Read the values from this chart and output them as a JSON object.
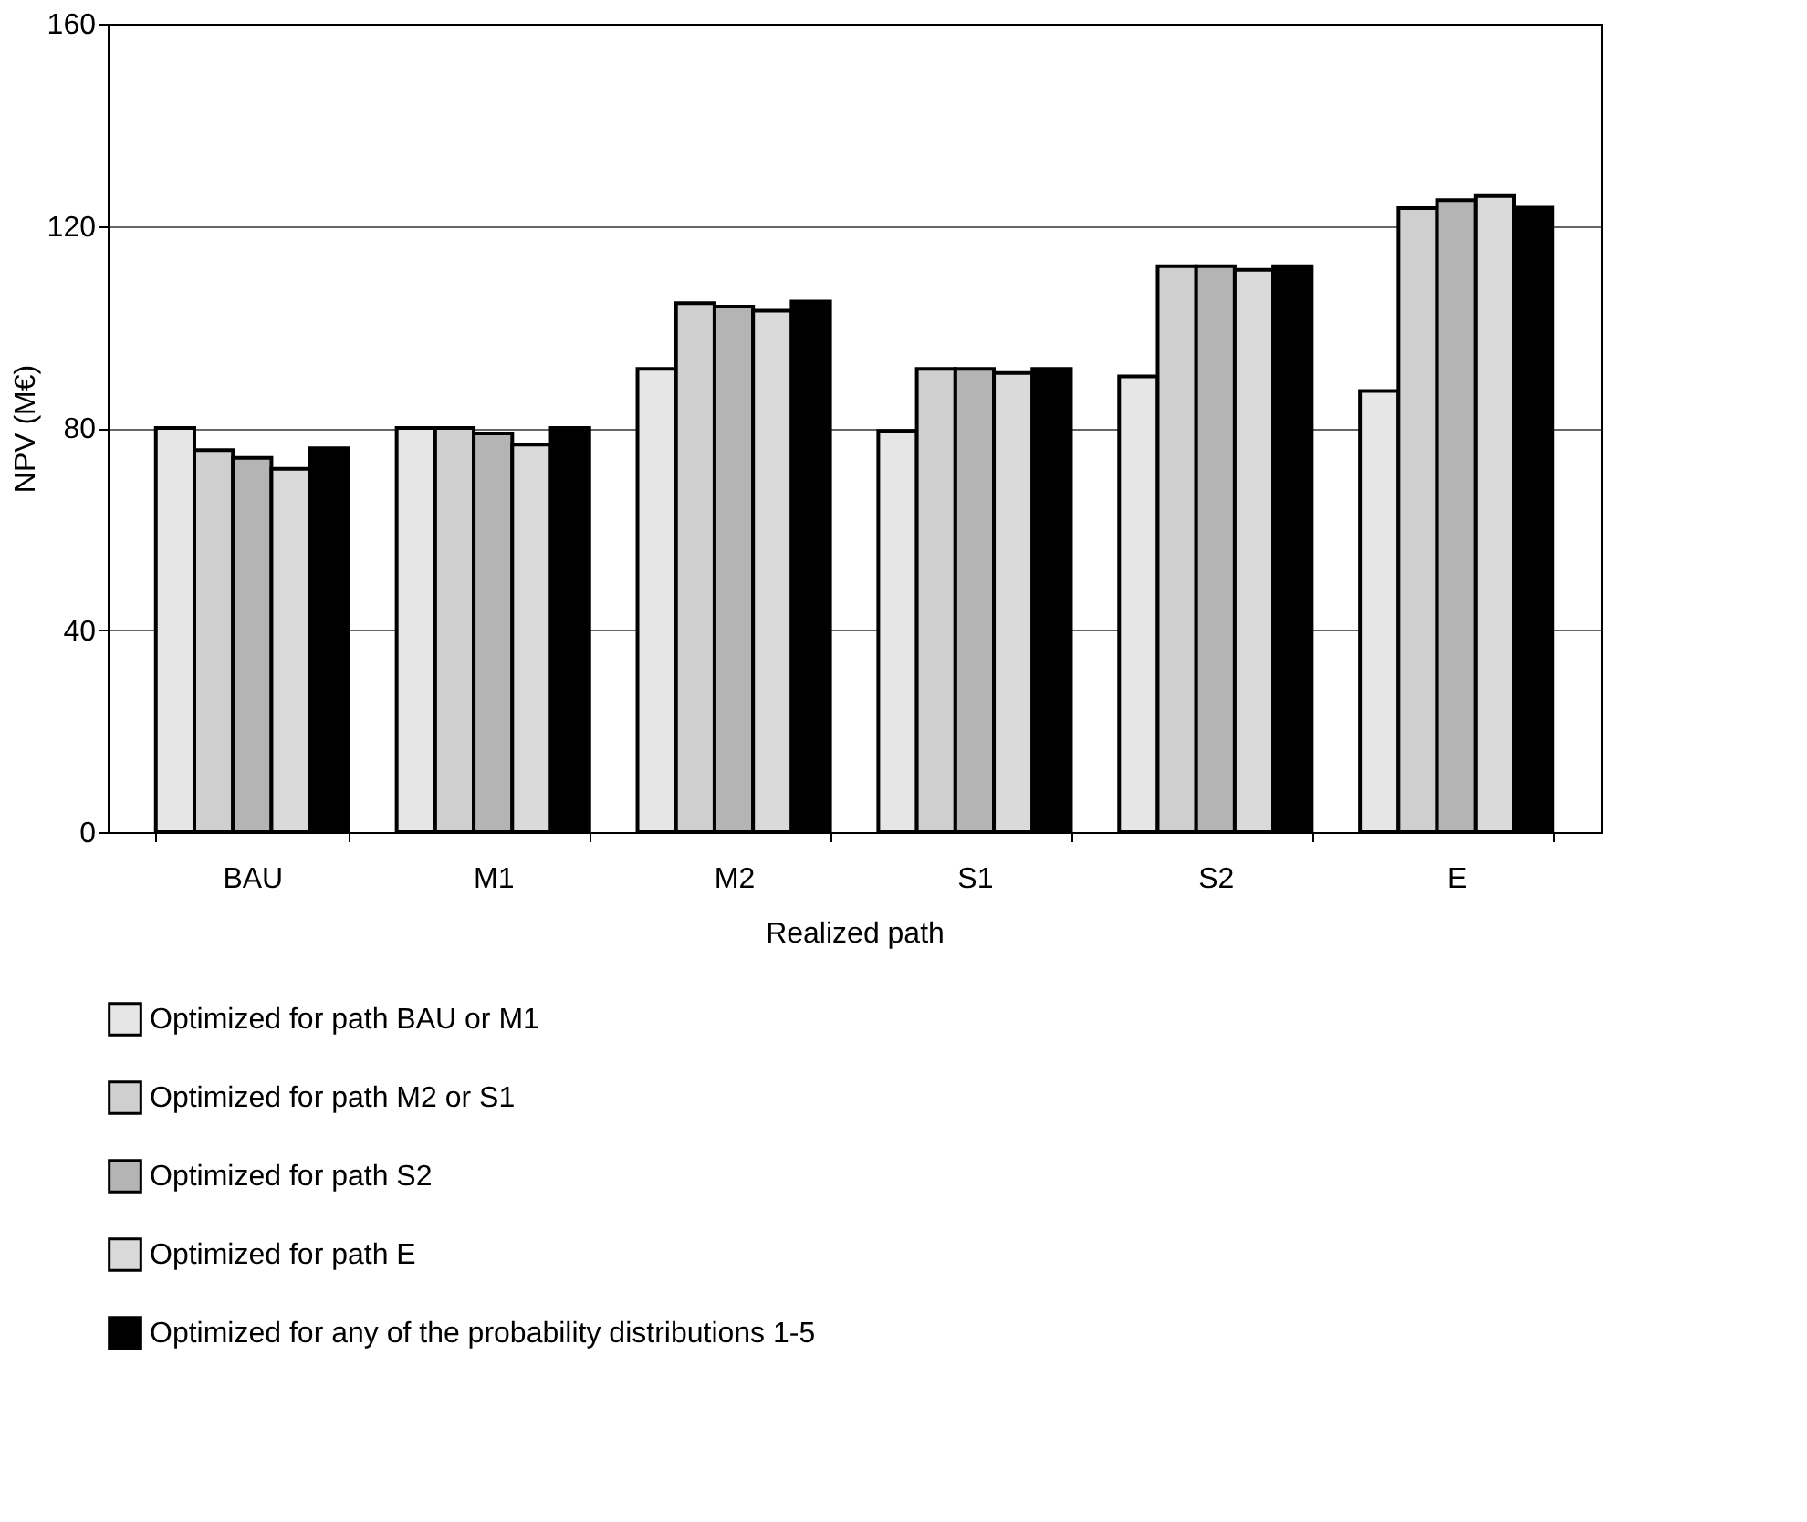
{
  "chart_data": {
    "type": "bar",
    "xlabel": "Realized path",
    "ylabel": "NPV (M€)",
    "categories": [
      "BAU",
      "M1",
      "M2",
      "S1",
      "S2",
      "E"
    ],
    "series": [
      {
        "name": "Optimized for path BAU or M1",
        "color": "#e6e6e6",
        "values": [
          80,
          80,
          91.7,
          79.4,
          90.2,
          87.3
        ]
      },
      {
        "name": "Optimized for path M2 or S1",
        "color": "#cfcfcf",
        "values": [
          75.6,
          80,
          104.7,
          91.7,
          112,
          123.5
        ]
      },
      {
        "name": "Optimized for path S2",
        "color": "#b4b4b4",
        "values": [
          74.1,
          78.9,
          104,
          91.7,
          112,
          125.1
        ]
      },
      {
        "name": "Optimized for path E",
        "color": "#dadada",
        "values": [
          71.9,
          76.7,
          103.2,
          90.9,
          111.3,
          125.9
        ]
      },
      {
        "name": "Optimized for any of the probability distributions 1-5",
        "color": "#000000",
        "values": [
          76,
          80,
          105,
          91.7,
          112,
          123.6
        ]
      }
    ],
    "ylim": [
      0,
      160
    ],
    "yticks": [
      0,
      40,
      80,
      120,
      160
    ],
    "grid": "y",
    "legend": "bottom"
  }
}
